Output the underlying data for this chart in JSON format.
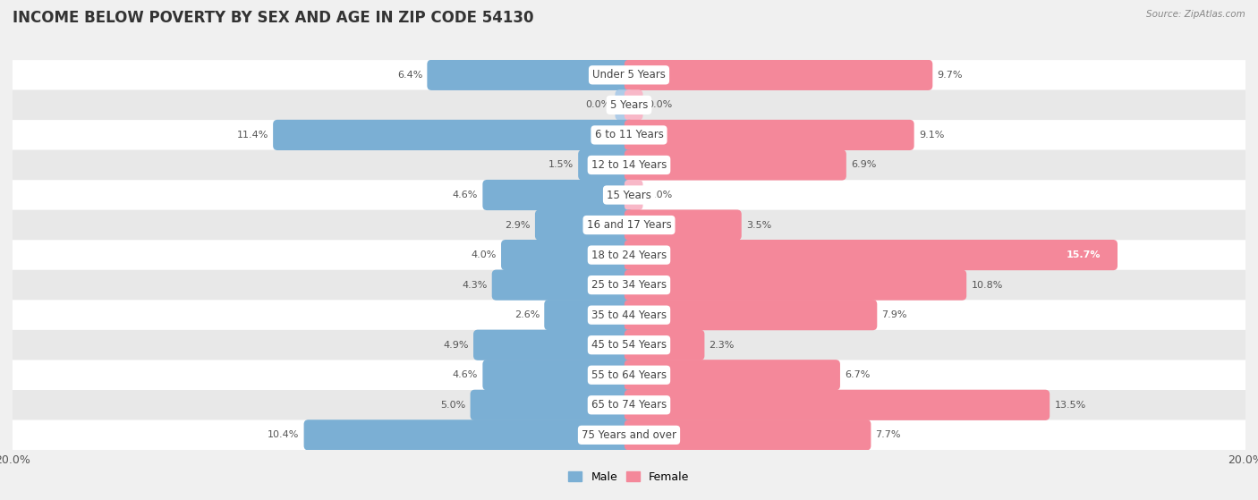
{
  "title": "INCOME BELOW POVERTY BY SEX AND AGE IN ZIP CODE 54130",
  "source": "Source: ZipAtlas.com",
  "categories": [
    "Under 5 Years",
    "5 Years",
    "6 to 11 Years",
    "12 to 14 Years",
    "15 Years",
    "16 and 17 Years",
    "18 to 24 Years",
    "25 to 34 Years",
    "35 to 44 Years",
    "45 to 54 Years",
    "55 to 64 Years",
    "65 to 74 Years",
    "75 Years and over"
  ],
  "male": [
    6.4,
    0.0,
    11.4,
    1.5,
    4.6,
    2.9,
    4.0,
    4.3,
    2.6,
    4.9,
    4.6,
    5.0,
    10.4
  ],
  "female": [
    9.7,
    0.0,
    9.1,
    6.9,
    0.0,
    3.5,
    15.7,
    10.8,
    7.9,
    2.3,
    6.7,
    13.5,
    7.7
  ],
  "male_color": "#7bafd4",
  "female_color": "#f4889a",
  "male_color_0": "#aecce8",
  "female_color_0": "#f8b8c8",
  "xlim": 20.0,
  "bar_height": 0.72,
  "background_color": "#f0f0f0",
  "row_bg_light": "#ffffff",
  "row_bg_dark": "#e8e8e8",
  "label_fontsize": 8.5,
  "title_fontsize": 12,
  "value_fontsize": 8
}
